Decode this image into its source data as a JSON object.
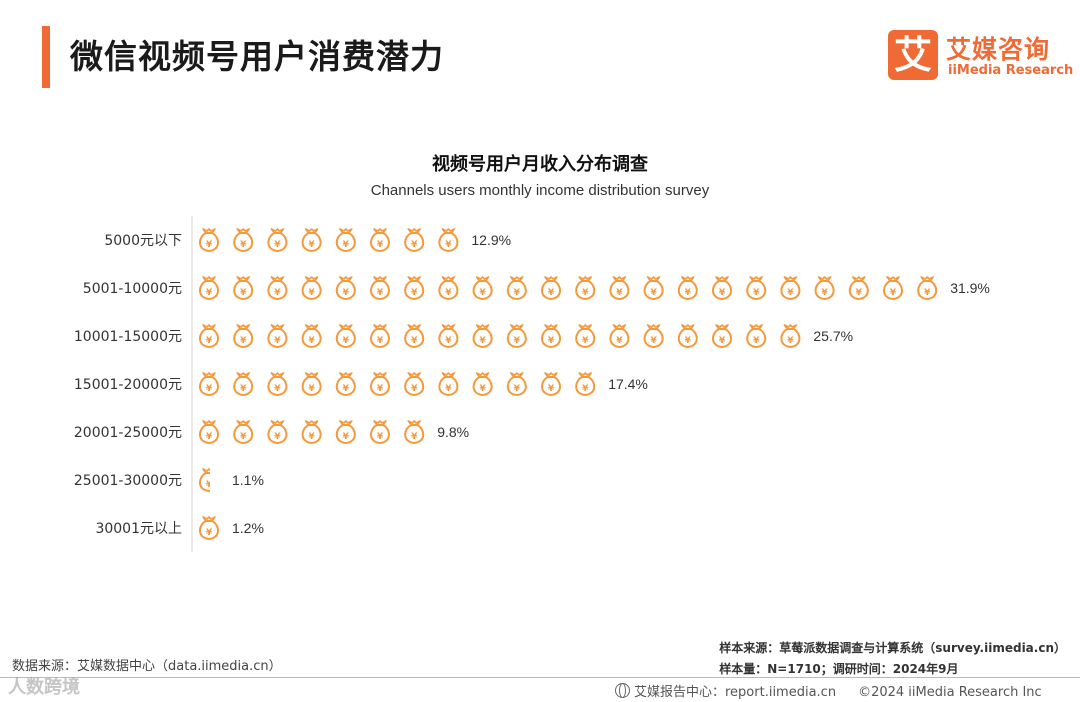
{
  "page": {
    "title": "微信视频号用户消费潜力",
    "logo_mark": "艾",
    "logo_cn": "艾媒咨询",
    "logo_en": "iiMedia Research"
  },
  "colors": {
    "accent": "#f06a35",
    "icon": "#f39a3c"
  },
  "chart_data": {
    "type": "bar",
    "title": "视频号用户月收入分布调查",
    "subtitle": "Channels users monthly income distribution survey",
    "icon": "money-bag-icon",
    "icon_unit_percent": 1.8,
    "categories": [
      "5000元以下",
      "5001-10000元",
      "10001-15000元",
      "15001-20000元",
      "20001-25000元",
      "25001-30000元",
      "30001元以上"
    ],
    "values": [
      12.9,
      31.9,
      25.7,
      17.4,
      9.8,
      1.1,
      1.2
    ],
    "value_labels": [
      "12.9%",
      "31.9%",
      "25.7%",
      "17.4%",
      "9.8%",
      "1.1%",
      "1.2%"
    ],
    "icon_counts": [
      8,
      22,
      18,
      12,
      7,
      0.5,
      1
    ]
  },
  "footer": {
    "source_left": "数据来源：艾媒数据中心（data.iimedia.cn）",
    "sample_source": "样本来源：草莓派数据调查与计算系统（survey.iimedia.cn）",
    "sample_info": "样本量：N=1710；调研时间：2024年9月",
    "report_center": "艾媒报告中心：report.iimedia.cn",
    "copyright": "©2024  iiMedia Research Inc",
    "watermark": "人数跨境"
  }
}
